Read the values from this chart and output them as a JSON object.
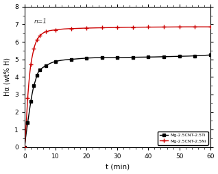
{
  "title": "",
  "xlabel": "t (min)",
  "ylabel": "Hα (wt% H)",
  "annotation": "n=1",
  "xlim": [
    0,
    60
  ],
  "ylim": [
    0,
    8
  ],
  "xticks": [
    0,
    10,
    20,
    30,
    40,
    50,
    60
  ],
  "yticks": [
    0,
    1,
    2,
    3,
    4,
    5,
    6,
    7,
    8
  ],
  "legend": [
    "Mg-2.5CNT-2.5Ti",
    "Mg-2.5CNT-2.5Ni"
  ],
  "Ti_color": "#000000",
  "Ni_color": "#cc0000",
  "bg_color": "#ffffff",
  "Ti_t": [
    0,
    0.3,
    0.6,
    1.0,
    1.5,
    2.0,
    2.5,
    3.0,
    3.5,
    4.0,
    5.0,
    6.0,
    7.0,
    8.0,
    10.0,
    12.0,
    15.0,
    20.0,
    25.0,
    30.0,
    35.0,
    40.0,
    45.0,
    50.0,
    55.0,
    60.0
  ],
  "Ti_H": [
    0,
    0.5,
    0.9,
    1.4,
    2.0,
    2.6,
    3.1,
    3.5,
    3.8,
    4.1,
    4.4,
    4.55,
    4.65,
    4.75,
    4.88,
    4.95,
    5.0,
    5.07,
    5.1,
    5.1,
    5.12,
    5.13,
    5.15,
    5.17,
    5.2,
    5.25
  ],
  "Ni_t": [
    0,
    0.3,
    0.6,
    1.0,
    1.5,
    2.0,
    2.5,
    3.0,
    3.5,
    4.0,
    5.0,
    6.0,
    7.0,
    8.0,
    10.0,
    12.0,
    15.0,
    20.0,
    25.0,
    30.0,
    35.0,
    40.0,
    45.0,
    50.0,
    55.0,
    60.0
  ],
  "Ni_H": [
    0,
    0.7,
    1.6,
    2.8,
    3.9,
    4.7,
    5.2,
    5.6,
    5.9,
    6.1,
    6.35,
    6.5,
    6.58,
    6.63,
    6.68,
    6.72,
    6.75,
    6.78,
    6.8,
    6.82,
    6.83,
    6.84,
    6.84,
    6.85,
    6.85,
    6.85
  ],
  "marker_Ti_t": [
    0,
    1.0,
    2.0,
    3.0,
    4.0,
    5.0,
    7.0,
    10.0,
    15.0,
    20.0,
    25.0,
    30.0,
    35.0,
    40.0,
    45.0,
    50.0,
    55.0,
    60.0
  ],
  "marker_Ti_H": [
    0,
    1.4,
    2.6,
    3.5,
    4.1,
    4.4,
    4.65,
    4.88,
    5.0,
    5.07,
    5.1,
    5.1,
    5.12,
    5.13,
    5.15,
    5.17,
    5.2,
    5.25
  ],
  "marker_Ni_t": [
    0,
    1.0,
    2.0,
    3.0,
    4.0,
    5.0,
    7.0,
    10.0,
    15.0,
    20.0,
    25.0,
    30.0,
    35.0,
    40.0,
    45.0,
    50.0,
    55.0,
    60.0
  ],
  "marker_Ni_H": [
    0,
    2.8,
    4.7,
    5.6,
    6.1,
    6.35,
    6.58,
    6.68,
    6.75,
    6.78,
    6.8,
    6.82,
    6.83,
    6.84,
    6.84,
    6.85,
    6.85,
    6.85
  ]
}
